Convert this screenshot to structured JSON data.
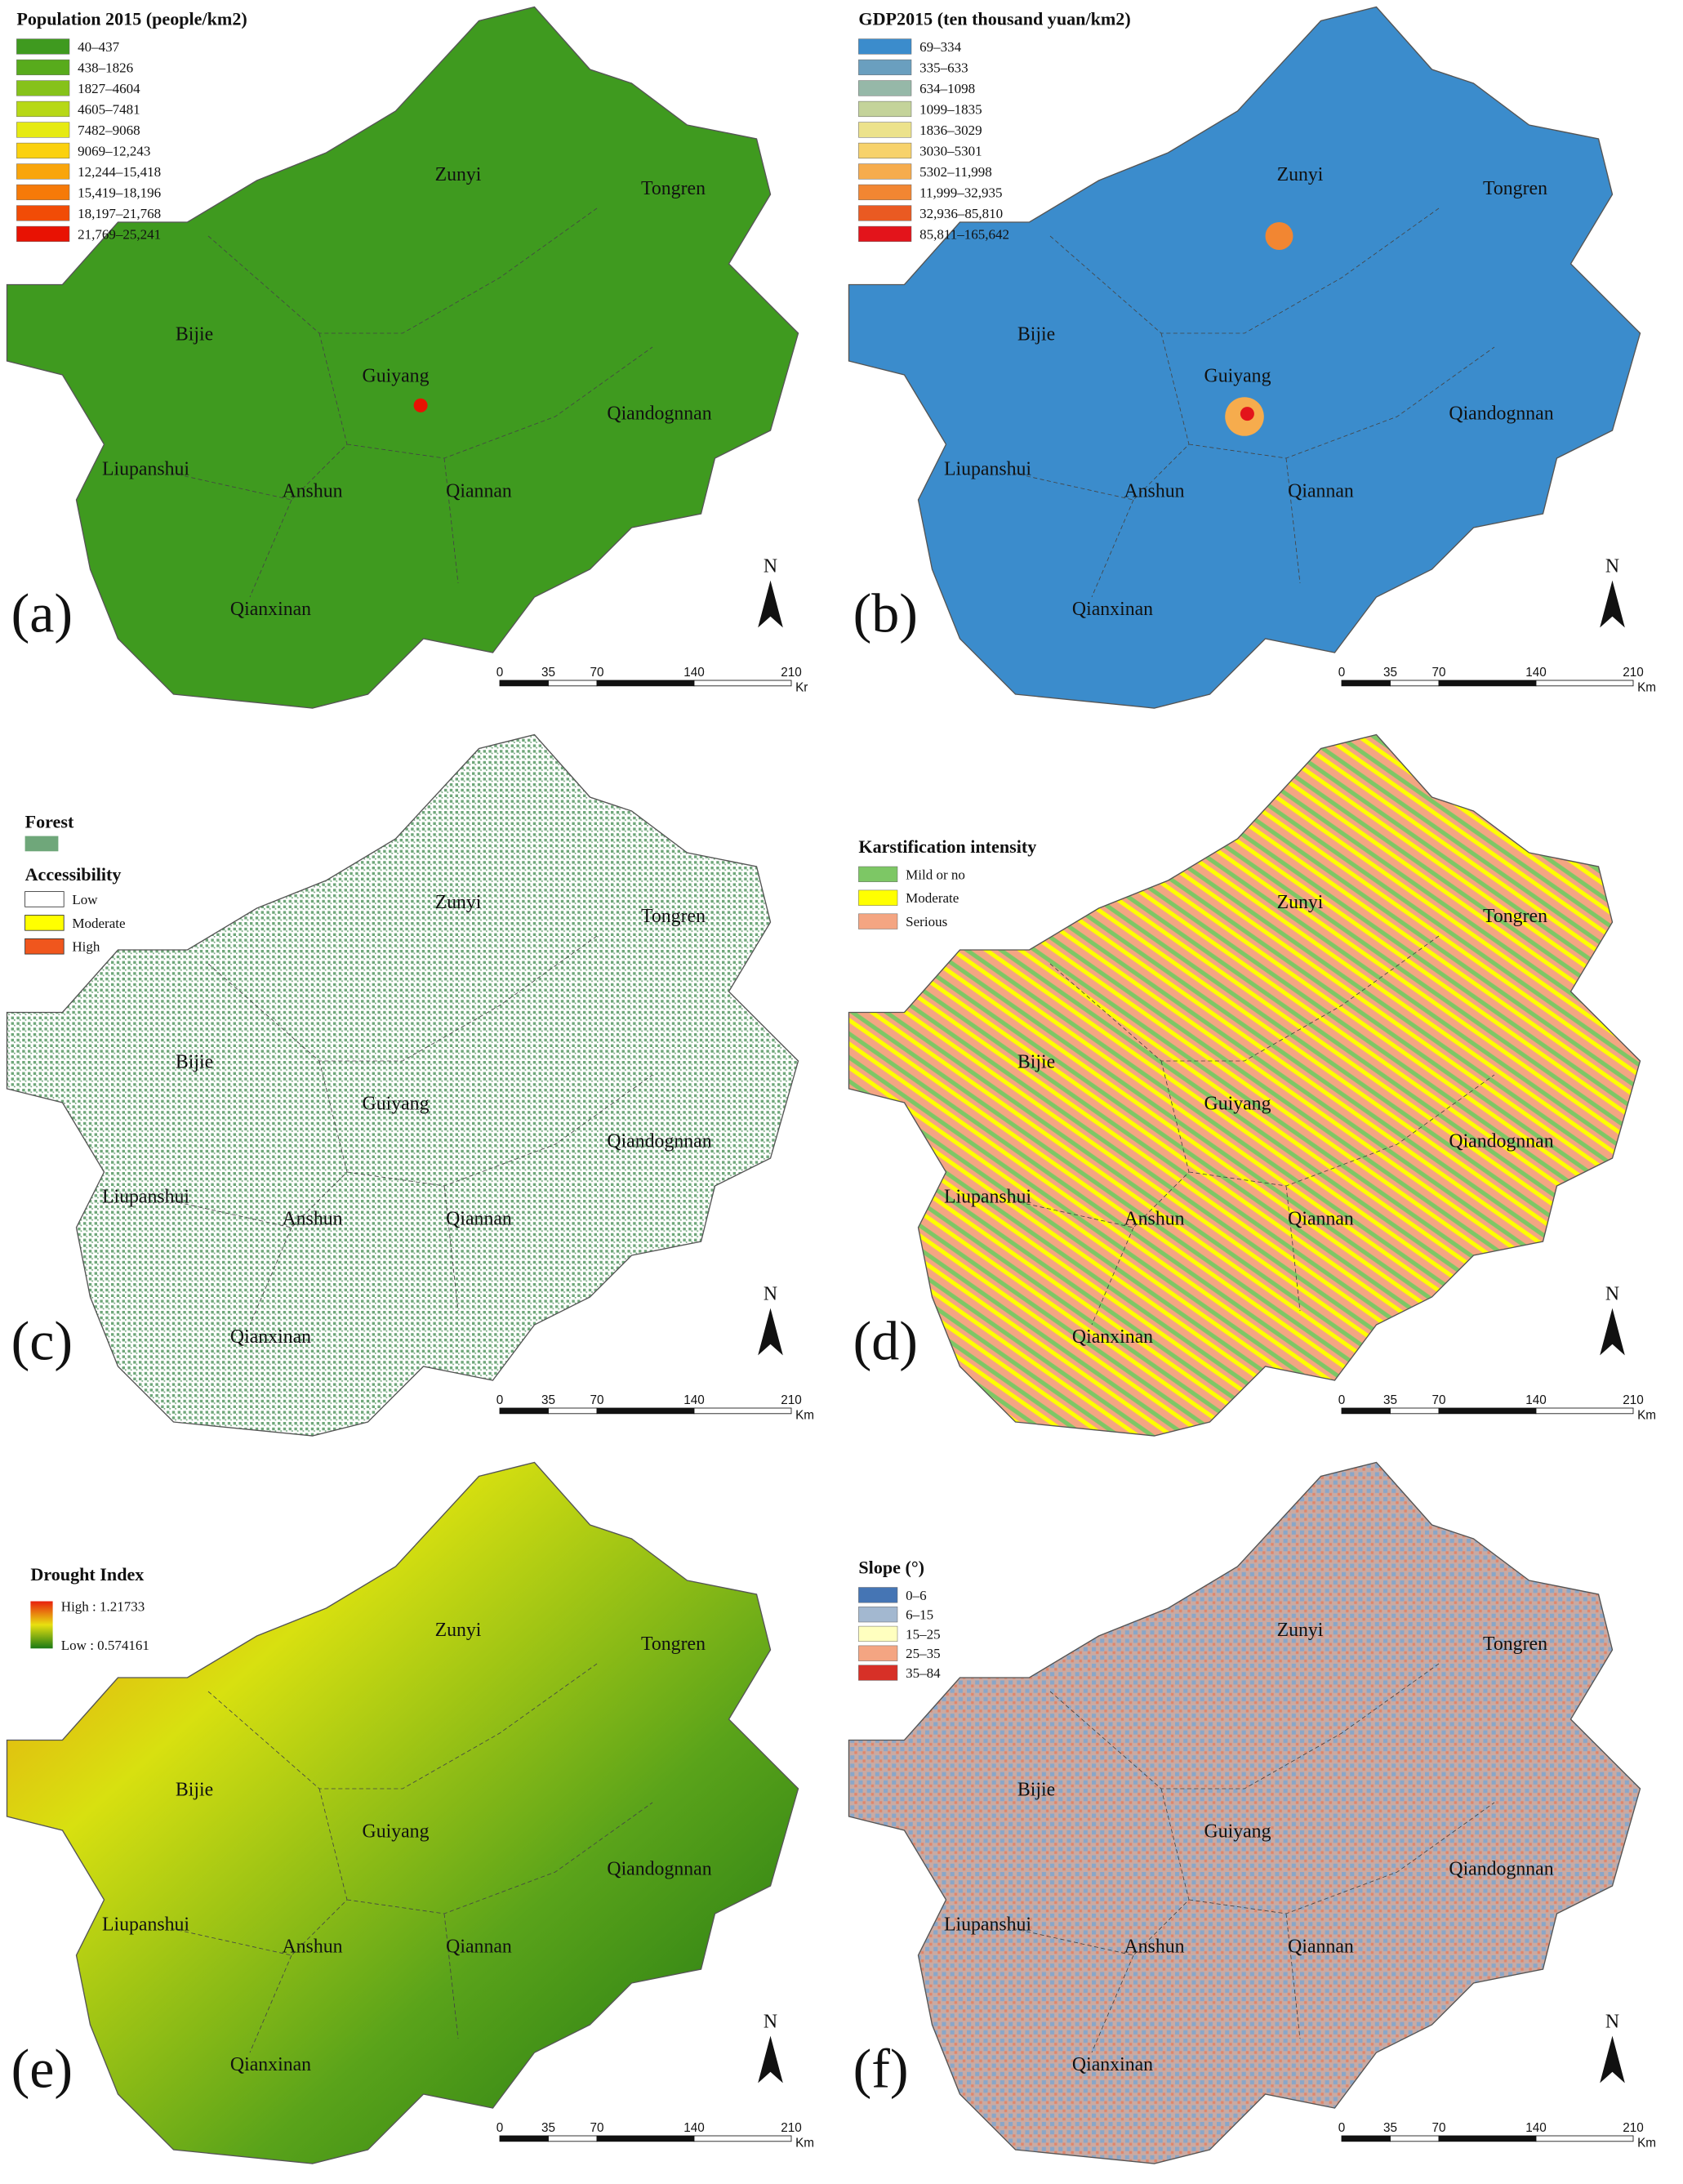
{
  "panels": [
    {
      "label": "(a)",
      "legend": {
        "title": "Population 2015 (people/km2)",
        "items": [
          {
            "label": "40–437",
            "color": "#3f9a1f"
          },
          {
            "label": "438–1826",
            "color": "#58ab1c"
          },
          {
            "label": "1827–4604",
            "color": "#86c21a"
          },
          {
            "label": "4605–7481",
            "color": "#b7d816"
          },
          {
            "label": "7482–9068",
            "color": "#e6ea12"
          },
          {
            "label": "9069–12,243",
            "color": "#fbd10e"
          },
          {
            "label": "12,244–15,418",
            "color": "#f9a50b"
          },
          {
            "label": "15,419–18,196",
            "color": "#f67a08"
          },
          {
            "label": "18,197–21,768",
            "color": "#f14c06"
          },
          {
            "label": "21,769–25,241",
            "color": "#e81203"
          }
        ]
      },
      "places": [
        "Zunyi",
        "Tongren",
        "Bijie",
        "Guiyang",
        "Qiandognnan",
        "Liupanshui",
        "Anshun",
        "Qiannan",
        "Qianxinan"
      ],
      "north": "N",
      "scale": {
        "ticks": [
          0,
          35,
          70,
          140,
          210
        ],
        "unit": "Kr"
      }
    },
    {
      "label": "(b)",
      "legend": {
        "title": "GDP2015 (ten thousand yuan/km2)",
        "items": [
          {
            "label": "69–334",
            "color": "#3b8ccc"
          },
          {
            "label": "335–633",
            "color": "#6a9fbf"
          },
          {
            "label": "634–1098",
            "color": "#96b8a8"
          },
          {
            "label": "1099–1835",
            "color": "#c4d39a"
          },
          {
            "label": "1836–3029",
            "color": "#ece28b"
          },
          {
            "label": "3030–5301",
            "color": "#f7d26b"
          },
          {
            "label": "5302–11,998",
            "color": "#f6ac4d"
          },
          {
            "label": "11,999–32,935",
            "color": "#f28632"
          },
          {
            "label": "32,936–85,810",
            "color": "#ea5a22"
          },
          {
            "label": "85,811–165,642",
            "color": "#e3141b"
          }
        ]
      },
      "places": [
        "Zunyi",
        "Tongren",
        "Bijie",
        "Guiyang",
        "Qiandognnan",
        "Liupanshui",
        "Anshun",
        "Qiannan",
        "Qianxinan"
      ],
      "north": "N",
      "scale": {
        "ticks": [
          0,
          35,
          70,
          140,
          210
        ],
        "unit": "Km"
      }
    },
    {
      "label": "(c)",
      "legend": {
        "title": "Forest",
        "color": "#6fa77a",
        "subtitle": "Accessibility",
        "items": [
          {
            "label": "Low",
            "color": "#ffffff"
          },
          {
            "label": "Moderate",
            "color": "#ffff00"
          },
          {
            "label": "High",
            "color": "#f0561d"
          }
        ]
      },
      "places": [
        "Zunyi",
        "Tongren",
        "Bijie",
        "Guiyang",
        "Qiandognnan",
        "Liupanshui",
        "Anshun",
        "Qiannan",
        "Qianxinan"
      ],
      "north": "N",
      "scale": {
        "ticks": [
          0,
          35,
          70,
          140,
          210
        ],
        "unit": "Km"
      }
    },
    {
      "label": "(d)",
      "legend": {
        "title": "Karstification intensity",
        "items": [
          {
            "label": "Mild or no",
            "color": "#7dc765"
          },
          {
            "label": "Moderate",
            "color": "#ffff00"
          },
          {
            "label": "Serious",
            "color": "#f4a582"
          }
        ]
      },
      "places": [
        "Zunyi",
        "Tongren",
        "Bijie",
        "Guiyang",
        "Qiandognnan",
        "Liupanshui",
        "Anshun",
        "Qiannan",
        "Qianxinan"
      ],
      "north": "N",
      "scale": {
        "ticks": [
          0,
          35,
          70,
          140,
          210
        ],
        "unit": "Km"
      }
    },
    {
      "label": "(e)",
      "legend": {
        "title": "Drought Index",
        "items": [
          {
            "label": "High : 1.21733",
            "color": "#e8200e"
          },
          {
            "label": "Low : 0.574161",
            "color": "#1a7a14"
          }
        ]
      },
      "places": [
        "Zunyi",
        "Tongren",
        "Bijie",
        "Guiyang",
        "Qiandognnan",
        "Liupanshui",
        "Anshun",
        "Qiannan",
        "Qianxinan"
      ],
      "north": "N",
      "scale": {
        "ticks": [
          0,
          35,
          70,
          140,
          210
        ],
        "unit": "Km"
      }
    },
    {
      "label": "(f)",
      "legend": {
        "title": "Slope (°)",
        "items": [
          {
            "label": "0–6",
            "color": "#4575b4"
          },
          {
            "label": "6–15",
            "color": "#a3b8d0"
          },
          {
            "label": "15–25",
            "color": "#ffffbf"
          },
          {
            "label": "25–35",
            "color": "#f4a582"
          },
          {
            "label": "35–84",
            "color": "#d73027"
          }
        ]
      },
      "places": [
        "Zunyi",
        "Tongren",
        "Bijie",
        "Guiyang",
        "Qiandognnan",
        "Liupanshui",
        "Anshun",
        "Qiannan",
        "Qianxinan"
      ],
      "north": "N",
      "scale": {
        "ticks": [
          0,
          35,
          70,
          140,
          210
        ],
        "unit": "Km"
      }
    }
  ]
}
